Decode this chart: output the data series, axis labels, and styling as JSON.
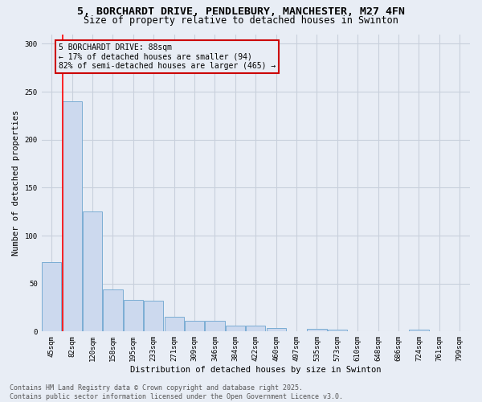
{
  "title_line1": "5, BORCHARDT DRIVE, PENDLEBURY, MANCHESTER, M27 4FN",
  "title_line2": "Size of property relative to detached houses in Swinton",
  "xlabel": "Distribution of detached houses by size in Swinton",
  "ylabel": "Number of detached properties",
  "categories": [
    "45sqm",
    "82sqm",
    "120sqm",
    "158sqm",
    "195sqm",
    "233sqm",
    "271sqm",
    "309sqm",
    "346sqm",
    "384sqm",
    "422sqm",
    "460sqm",
    "497sqm",
    "535sqm",
    "573sqm",
    "610sqm",
    "648sqm",
    "686sqm",
    "724sqm",
    "761sqm",
    "799sqm"
  ],
  "values": [
    72,
    240,
    125,
    44,
    33,
    32,
    15,
    11,
    11,
    6,
    6,
    4,
    0,
    3,
    2,
    0,
    0,
    0,
    2,
    0,
    0
  ],
  "bar_color": "#ccd9ee",
  "bar_edge_color": "#7badd4",
  "grid_color": "#c8d0dc",
  "background_color": "#e8edf5",
  "annotation_box_text": "5 BORCHARDT DRIVE: 88sqm\n← 17% of detached houses are smaller (94)\n82% of semi-detached houses are larger (465) →",
  "annotation_box_color": "#cc0000",
  "ylim": [
    0,
    310
  ],
  "yticks": [
    0,
    50,
    100,
    150,
    200,
    250,
    300
  ],
  "footer_text": "Contains HM Land Registry data © Crown copyright and database right 2025.\nContains public sector information licensed under the Open Government Licence v3.0.",
  "title_fontsize": 9.5,
  "subtitle_fontsize": 8.5,
  "axis_label_fontsize": 7.5,
  "tick_fontsize": 6.5,
  "annotation_fontsize": 7,
  "footer_fontsize": 6
}
